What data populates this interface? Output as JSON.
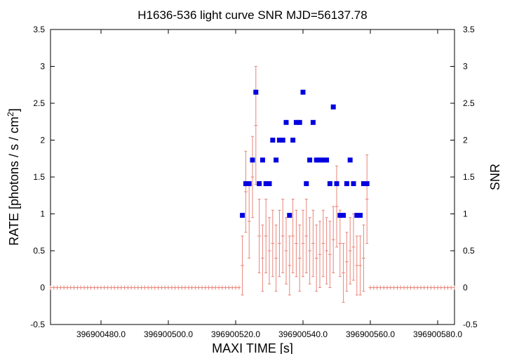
{
  "chart_data": {
    "type": "scatter",
    "title": "H1636-536 light curve  SNR MJD=56137.78",
    "xlabel": "MAXI TIME [s]",
    "ylabel": "RATE [photons / s / cm",
    "ylabel_sup": "2",
    "ylabel_end": "]",
    "y2label": "SNR",
    "xlim": [
      396900465.0,
      396900585.0
    ],
    "ylim": [
      -0.5,
      3.5
    ],
    "y2lim": [
      -0.5,
      3.5
    ],
    "x_ticks": [
      396900480.0,
      396900500.0,
      396900520.0,
      396900540.0,
      396900560.0,
      396900580.0
    ],
    "x_tick_labels": [
      "396900480.0",
      "396900500.0",
      "396900520.0",
      "396900540.0",
      "396900560.0",
      "396900580.0"
    ],
    "y_ticks": [
      -0.5,
      0,
      0.5,
      1,
      1.5,
      2,
      2.5,
      3,
      3.5
    ],
    "y_tick_labels": [
      "-0.5",
      "0",
      "0.5",
      "1",
      "1.5",
      "2",
      "2.5",
      "3",
      "3.5"
    ],
    "grid": false,
    "colors": {
      "rate": "#e8857a",
      "snr": "#0000e0",
      "axis": "#000000"
    },
    "zero_series": {
      "name": "RATE",
      "x_start": 396900465.0,
      "x_end": 396900521.0,
      "x_start2": 396900560.0,
      "x_end2": 396900585.0,
      "step": 1.0
    },
    "rate_series": {
      "name": "RATE",
      "x": [
        396900522,
        396900523,
        396900524,
        396900525,
        396900526,
        396900527,
        396900528,
        396900529,
        396900530,
        396900531,
        396900532,
        396900533,
        396900534,
        396900535,
        396900536,
        396900537,
        396900538,
        396900539,
        396900540,
        396900541,
        396900542,
        396900543,
        396900544,
        396900545,
        396900546,
        396900547,
        396900548,
        396900549,
        396900550,
        396900551,
        396900552,
        396900553,
        396900554,
        396900555,
        396900556,
        396900557,
        396900558,
        396900559
      ],
      "y": [
        0.3,
        1.3,
        0.9,
        1.5,
        2.2,
        0.7,
        0.4,
        0.7,
        0.5,
        0.6,
        0.4,
        0.6,
        0.7,
        0.5,
        0.3,
        0.7,
        0.6,
        0.4,
        0.6,
        0.7,
        0.5,
        0.6,
        0.4,
        0.45,
        0.6,
        0.5,
        0.45,
        0.65,
        1.1,
        0.6,
        0.2,
        0.35,
        0.5,
        0.55,
        0.3,
        0.3,
        0.4,
        1.2
      ],
      "err": [
        0.4,
        0.55,
        0.5,
        0.55,
        0.8,
        0.5,
        0.45,
        0.5,
        0.45,
        0.45,
        0.45,
        0.45,
        0.5,
        0.45,
        0.4,
        0.5,
        0.45,
        0.45,
        0.45,
        0.5,
        0.45,
        0.45,
        0.45,
        0.45,
        0.45,
        0.45,
        0.45,
        0.45,
        0.55,
        0.45,
        0.4,
        0.4,
        0.45,
        0.45,
        0.4,
        0.4,
        0.45,
        0.6
      ]
    },
    "snr_series": {
      "name": "SNR",
      "x": [
        396900522,
        396900523,
        396900524,
        396900525,
        396900526,
        396900527,
        396900528,
        396900529,
        396900530,
        396900531,
        396900532,
        396900533,
        396900534,
        396900535,
        396900536,
        396900537,
        396900538,
        396900539,
        396900540,
        396900541,
        396900542,
        396900543,
        396900544,
        396900545,
        396900546,
        396900547,
        396900548,
        396900549,
        396900550,
        396900551,
        396900552,
        396900553,
        396900554,
        396900555,
        396900556,
        396900557,
        396900558,
        396900559
      ],
      "y": [
        0.98,
        1.41,
        1.41,
        1.73,
        2.65,
        1.41,
        1.73,
        1.41,
        1.41,
        2.0,
        1.73,
        2.0,
        2.0,
        2.24,
        0.98,
        2.0,
        2.24,
        2.24,
        2.65,
        1.41,
        1.73,
        2.24,
        1.73,
        1.73,
        1.73,
        1.73,
        1.41,
        2.45,
        1.41,
        0.98,
        0.98,
        1.41,
        1.73,
        1.41,
        0.98,
        0.98,
        1.41,
        1.41
      ]
    }
  }
}
